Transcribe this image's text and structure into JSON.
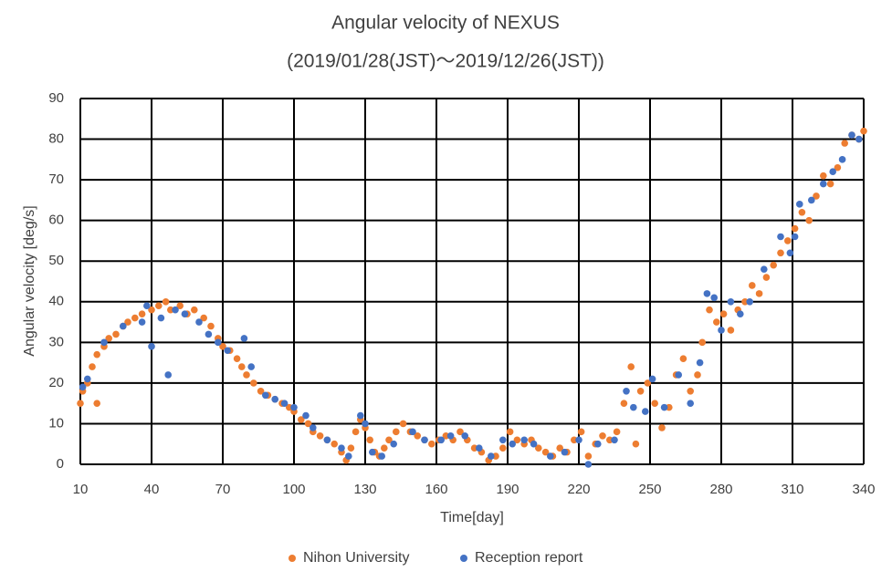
{
  "chart_data": {
    "type": "scatter",
    "title": "Angular velocity of NEXUS",
    "subtitle": "(2019/01/28(JST)～2019/12/26(JST))",
    "x_label": "Time[day]",
    "y_label": "Angular velocity [deg/s]",
    "xlim": [
      10,
      340
    ],
    "xticks": [
      10,
      40,
      70,
      100,
      130,
      160,
      190,
      220,
      250,
      280,
      310,
      340
    ],
    "ylim": [
      0,
      90
    ],
    "yticks": [
      0,
      10,
      20,
      30,
      40,
      50,
      60,
      70,
      80,
      90
    ],
    "grid": true,
    "legend": "bottom",
    "series": [
      {
        "name": "Nihon University",
        "color": "#ED7D31",
        "x": [
          10,
          11,
          13,
          15,
          17,
          17,
          20,
          22,
          25,
          28,
          30,
          33,
          36,
          40,
          43,
          46,
          48,
          52,
          55,
          58,
          62,
          65,
          68,
          70,
          73,
          76,
          78,
          80,
          83,
          86,
          89,
          92,
          95,
          98,
          100,
          103,
          106,
          108,
          111,
          114,
          117,
          120,
          122,
          124,
          126,
          128,
          130,
          132,
          134,
          136,
          138,
          140,
          143,
          146,
          149,
          152,
          155,
          158,
          161,
          164,
          167,
          170,
          173,
          176,
          179,
          182,
          185,
          188,
          191,
          194,
          197,
          200,
          203,
          206,
          209,
          212,
          215,
          218,
          221,
          224,
          227,
          230,
          233,
          236,
          239,
          242,
          244,
          246,
          249,
          252,
          255,
          258,
          261,
          264,
          267,
          270,
          272,
          275,
          278,
          281,
          284,
          287,
          290,
          293,
          296,
          299,
          302,
          305,
          308,
          311,
          314,
          317,
          320,
          323,
          326,
          329,
          332,
          335,
          338,
          340
        ],
        "y": [
          15,
          18,
          20,
          24,
          27,
          15,
          29,
          31,
          32,
          34,
          35,
          36,
          37,
          38,
          39,
          40,
          38,
          39,
          37,
          38,
          36,
          34,
          31,
          29,
          28,
          26,
          24,
          22,
          20,
          18,
          17,
          16,
          15,
          14,
          13,
          11,
          10,
          8,
          7,
          6,
          5,
          3,
          1,
          4,
          8,
          11,
          9,
          6,
          3,
          2,
          4,
          6,
          8,
          10,
          8,
          7,
          6,
          5,
          6,
          7,
          6,
          8,
          6,
          4,
          3,
          1,
          2,
          4,
          8,
          6,
          5,
          6,
          4,
          3,
          2,
          4,
          3,
          6,
          8,
          2,
          5,
          7,
          6,
          8,
          15,
          24,
          5,
          18,
          20,
          15,
          9,
          14,
          22,
          26,
          18,
          22,
          30,
          38,
          35,
          37,
          33,
          38,
          40,
          44,
          42,
          46,
          49,
          52,
          55,
          58,
          62,
          60,
          66,
          71,
          69,
          73,
          79,
          81,
          80,
          82
        ]
      },
      {
        "name": "Reception report",
        "color": "#4472C4",
        "x": [
          11,
          13,
          20,
          28,
          36,
          38,
          40,
          44,
          47,
          50,
          54,
          60,
          64,
          68,
          72,
          79,
          82,
          88,
          92,
          96,
          100,
          105,
          108,
          114,
          120,
          123,
          128,
          130,
          133,
          137,
          142,
          150,
          155,
          162,
          166,
          172,
          178,
          183,
          188,
          192,
          197,
          201,
          208,
          214,
          220,
          224,
          228,
          235,
          240,
          243,
          248,
          251,
          256,
          262,
          267,
          271,
          274,
          277,
          280,
          284,
          288,
          292,
          298,
          305,
          309,
          311,
          313,
          318,
          323,
          327,
          331,
          335,
          338
        ],
        "y": [
          19,
          21,
          30,
          34,
          35,
          39,
          29,
          36,
          22,
          38,
          37,
          35,
          32,
          30,
          28,
          31,
          24,
          17,
          16,
          15,
          14,
          12,
          9,
          6,
          4,
          2,
          12,
          10,
          3,
          2,
          5,
          8,
          6,
          6,
          7,
          7,
          4,
          2,
          6,
          5,
          6,
          5,
          2,
          3,
          6,
          0,
          5,
          6,
          18,
          14,
          13,
          21,
          14,
          22,
          15,
          25,
          42,
          41,
          33,
          40,
          37,
          40,
          48,
          56,
          52,
          56,
          64,
          65,
          69,
          72,
          75,
          81,
          80
        ]
      }
    ]
  }
}
